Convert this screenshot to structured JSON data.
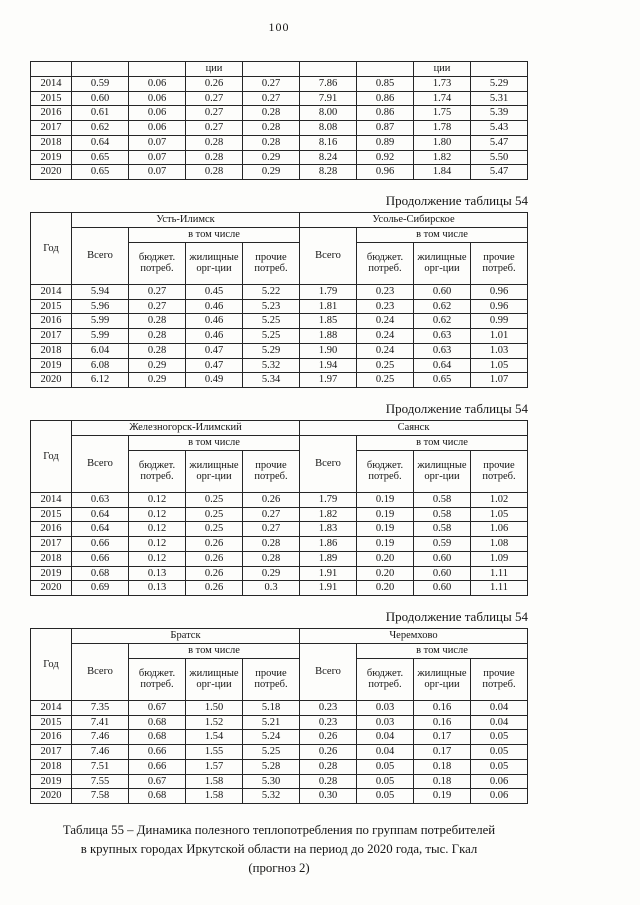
{
  "page": {
    "number": "100"
  },
  "labels": {
    "continuation": "Продолжение таблицы 54",
    "year": "Год",
    "total": "Всего",
    "including": "в том числе",
    "budget": "бюджет. потреб.",
    "housing": "жилищные орг-ции",
    "other": "прочие потреб.",
    "housing_fragment": "ции"
  },
  "caption": {
    "line1": "Таблица 55 – Динамика полезного теплопотребления по группам потребителей",
    "line2": "в крупных городах Иркутской области на период до 2020 года, тыс. Гкал",
    "line3": "(прогноз 2)"
  },
  "tables": [
    {
      "type": "partial",
      "rows": [
        [
          "2014",
          "0.59",
          "0.06",
          "0.26",
          "0.27",
          "7.86",
          "0.85",
          "1.73",
          "5.29"
        ],
        [
          "2015",
          "0.60",
          "0.06",
          "0.27",
          "0.27",
          "7.91",
          "0.86",
          "1.74",
          "5.31"
        ],
        [
          "2016",
          "0.61",
          "0.06",
          "0.27",
          "0.28",
          "8.00",
          "0.86",
          "1.75",
          "5.39"
        ],
        [
          "2017",
          "0.62",
          "0.06",
          "0.27",
          "0.28",
          "8.08",
          "0.87",
          "1.78",
          "5.43"
        ],
        [
          "2018",
          "0.64",
          "0.07",
          "0.28",
          "0.28",
          "8.16",
          "0.89",
          "1.80",
          "5.47"
        ],
        [
          "2019",
          "0.65",
          "0.07",
          "0.28",
          "0.29",
          "8.24",
          "0.92",
          "1.82",
          "5.50"
        ],
        [
          "2020",
          "0.65",
          "0.07",
          "0.28",
          "0.29",
          "8.28",
          "0.96",
          "1.84",
          "5.47"
        ]
      ]
    },
    {
      "type": "full",
      "city_left": "Усть-Илимск",
      "city_right": "Усолье-Сибирское",
      "rows": [
        [
          "2014",
          "5.94",
          "0.27",
          "0.45",
          "5.22",
          "1.79",
          "0.23",
          "0.60",
          "0.96"
        ],
        [
          "2015",
          "5.96",
          "0.27",
          "0.46",
          "5.23",
          "1.81",
          "0.23",
          "0.62",
          "0.96"
        ],
        [
          "2016",
          "5.99",
          "0.28",
          "0.46",
          "5.25",
          "1.85",
          "0.24",
          "0.62",
          "0.99"
        ],
        [
          "2017",
          "5.99",
          "0.28",
          "0.46",
          "5.25",
          "1.88",
          "0.24",
          "0.63",
          "1.01"
        ],
        [
          "2018",
          "6.04",
          "0.28",
          "0.47",
          "5.29",
          "1.90",
          "0.24",
          "0.63",
          "1.03"
        ],
        [
          "2019",
          "6.08",
          "0.29",
          "0.47",
          "5.32",
          "1.94",
          "0.25",
          "0.64",
          "1.05"
        ],
        [
          "2020",
          "6.12",
          "0.29",
          "0.49",
          "5.34",
          "1.97",
          "0.25",
          "0.65",
          "1.07"
        ]
      ]
    },
    {
      "type": "full",
      "city_left": "Железногорск-Илимский",
      "city_right": "Саянск",
      "rows": [
        [
          "2014",
          "0.63",
          "0.12",
          "0.25",
          "0.26",
          "1.79",
          "0.19",
          "0.58",
          "1.02"
        ],
        [
          "2015",
          "0.64",
          "0.12",
          "0.25",
          "0.27",
          "1.82",
          "0.19",
          "0.58",
          "1.05"
        ],
        [
          "2016",
          "0.64",
          "0.12",
          "0.25",
          "0.27",
          "1.83",
          "0.19",
          "0.58",
          "1.06"
        ],
        [
          "2017",
          "0.66",
          "0.12",
          "0.26",
          "0.28",
          "1.86",
          "0.19",
          "0.59",
          "1.08"
        ],
        [
          "2018",
          "0.66",
          "0.12",
          "0.26",
          "0.28",
          "1.89",
          "0.20",
          "0.60",
          "1.09"
        ],
        [
          "2019",
          "0.68",
          "0.13",
          "0.26",
          "0.29",
          "1.91",
          "0.20",
          "0.60",
          "1.11"
        ],
        [
          "2020",
          "0.69",
          "0.13",
          "0.26",
          "0.3",
          "1.91",
          "0.20",
          "0.60",
          "1.11"
        ]
      ]
    },
    {
      "type": "full",
      "city_left": "Братск",
      "city_right": "Черемхово",
      "rows": [
        [
          "2014",
          "7.35",
          "0.67",
          "1.50",
          "5.18",
          "0.23",
          "0.03",
          "0.16",
          "0.04"
        ],
        [
          "2015",
          "7.41",
          "0.68",
          "1.52",
          "5.21",
          "0.23",
          "0.03",
          "0.16",
          "0.04"
        ],
        [
          "2016",
          "7.46",
          "0.68",
          "1.54",
          "5.24",
          "0.26",
          "0.04",
          "0.17",
          "0.05"
        ],
        [
          "2017",
          "7.46",
          "0.66",
          "1.55",
          "5.25",
          "0.26",
          "0.04",
          "0.17",
          "0.05"
        ],
        [
          "2018",
          "7.51",
          "0.66",
          "1.57",
          "5.28",
          "0.28",
          "0.05",
          "0.18",
          "0.05"
        ],
        [
          "2019",
          "7.55",
          "0.67",
          "1.58",
          "5.30",
          "0.28",
          "0.05",
          "0.18",
          "0.06"
        ],
        [
          "2020",
          "7.58",
          "0.68",
          "1.58",
          "5.32",
          "0.30",
          "0.05",
          "0.19",
          "0.06"
        ]
      ]
    }
  ]
}
